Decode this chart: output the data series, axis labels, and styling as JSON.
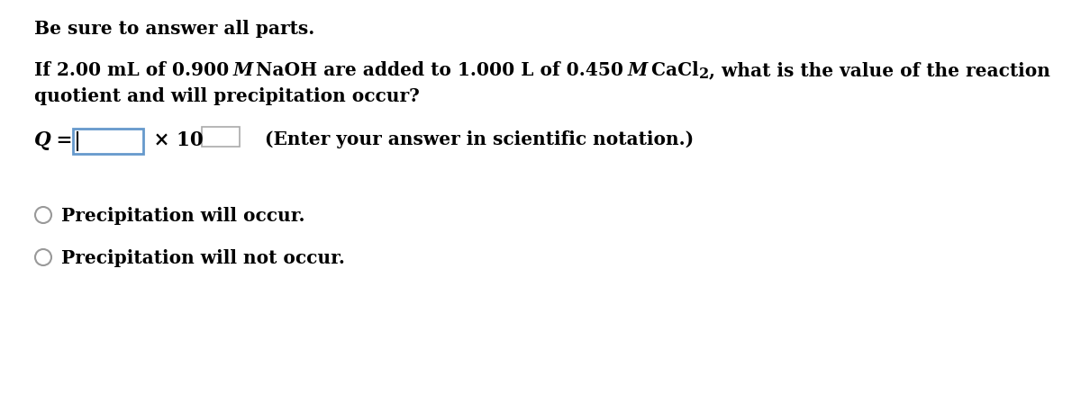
{
  "background_color": "#ffffff",
  "line1": "Be sure to answer all parts.",
  "text_color": "#000000",
  "box1_color": "#6699cc",
  "radio1": "Precipitation will occur.",
  "radio2": "Precipitation will not occur.",
  "hint": "(Enter your answer in scientific notation.)"
}
